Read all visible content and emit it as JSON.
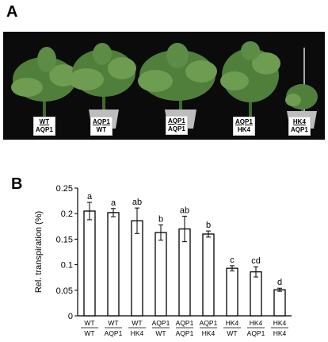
{
  "figure": {
    "panel_a_label": "A",
    "panel_b_label": "B",
    "photo_tags": [
      {
        "top": "WT",
        "bottom": "AQP1"
      },
      {
        "top": "AQP1",
        "bottom": "WT"
      },
      {
        "top": "AQP1",
        "bottom": "AQP1"
      },
      {
        "top": "AQP1",
        "bottom": "HK4"
      },
      {
        "top": "HK4",
        "bottom": "AQP1"
      }
    ]
  },
  "colors": {
    "photo_background": "#0b0b0b",
    "foliage": "#4f7f3a",
    "foliage_light": "#6e9c50",
    "pot": "#bdbdbd",
    "bar_fill": "#ffffff",
    "bar_stroke": "#000000"
  },
  "chart_data": {
    "type": "bar",
    "ylabel": "Rel. transpiration (%)",
    "ylim": [
      0,
      0.25
    ],
    "yticks": [
      0,
      0.05,
      0.1,
      0.15,
      0.2,
      0.25
    ],
    "ytick_labels": [
      "0",
      "0.05",
      "0.1",
      "0.15",
      "0.2",
      "0.25"
    ],
    "categories": [
      {
        "top": "WT",
        "bottom": "WT"
      },
      {
        "top": "WT",
        "bottom": "AQP1"
      },
      {
        "top": "WT",
        "bottom": "HK4"
      },
      {
        "top": "AQP1",
        "bottom": "WT"
      },
      {
        "top": "AQP1",
        "bottom": "AQP1"
      },
      {
        "top": "AQP1",
        "bottom": "HK4"
      },
      {
        "top": "HK4",
        "bottom": "WT"
      },
      {
        "top": "HK4",
        "bottom": "AQP1"
      },
      {
        "top": "HK4",
        "bottom": "HK4"
      }
    ],
    "values": [
      0.205,
      0.202,
      0.186,
      0.163,
      0.17,
      0.16,
      0.093,
      0.086,
      0.051
    ],
    "errors": [
      0.017,
      0.008,
      0.025,
      0.015,
      0.025,
      0.006,
      0.005,
      0.01,
      0.003
    ],
    "significance_letters": [
      "a",
      "a",
      "ab",
      "b",
      "ab",
      "b",
      "c",
      "cd",
      "d"
    ],
    "grid": false,
    "legend": false
  }
}
